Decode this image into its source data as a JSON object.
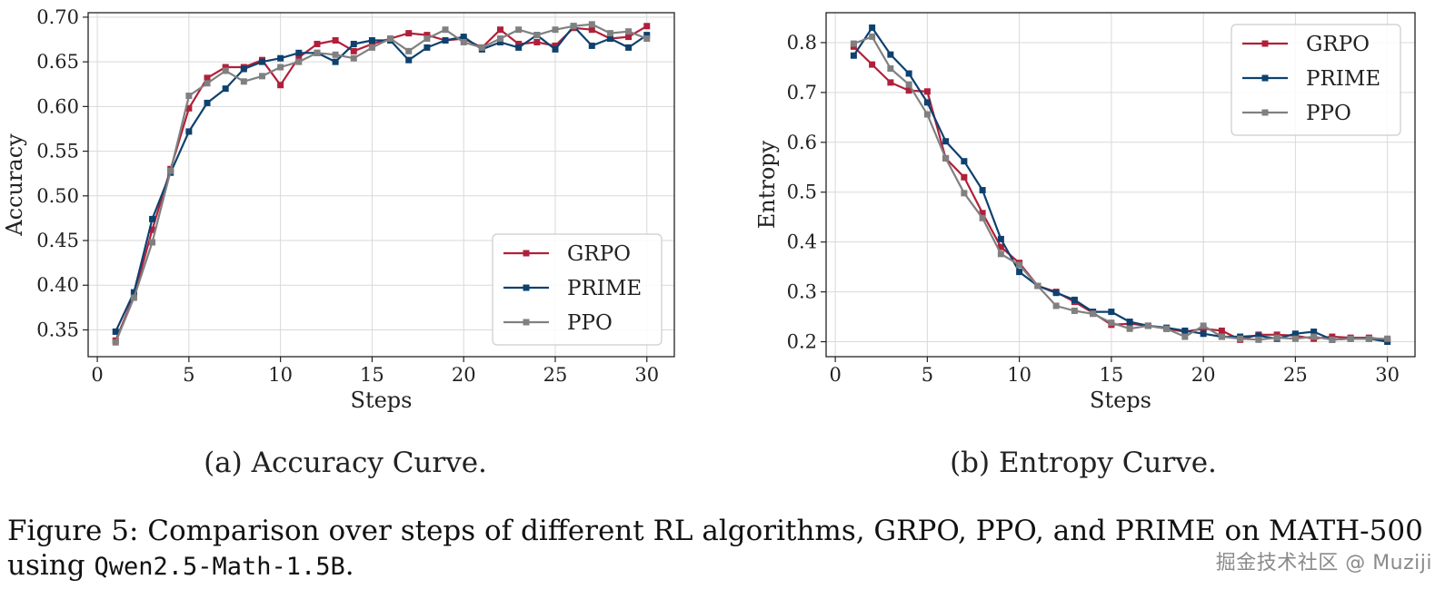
{
  "chart_data": [
    {
      "type": "line",
      "id": "accuracy",
      "subcaption": "(a) Accuracy Curve.",
      "xlabel": "Steps",
      "ylabel": "Accuracy",
      "xlim": [
        -0.5,
        31.5
      ],
      "ylim": [
        0.32,
        0.705
      ],
      "xticks": [
        0,
        5,
        10,
        15,
        20,
        25,
        30
      ],
      "yticks": [
        0.35,
        0.4,
        0.45,
        0.5,
        0.55,
        0.6,
        0.65,
        0.7
      ],
      "ytick_labels": [
        "0.35",
        "0.40",
        "0.45",
        "0.50",
        "0.55",
        "0.60",
        "0.65",
        "0.70"
      ],
      "grid": true,
      "legend_position": "lower-right",
      "x": [
        1,
        2,
        3,
        4,
        5,
        6,
        7,
        8,
        9,
        10,
        11,
        12,
        13,
        14,
        15,
        16,
        17,
        18,
        19,
        20,
        21,
        22,
        23,
        24,
        25,
        26,
        27,
        28,
        29,
        30
      ],
      "series": [
        {
          "name": "GRPO",
          "color": "#b0203a",
          "values": [
            0.338,
            0.388,
            0.462,
            0.53,
            0.598,
            0.632,
            0.644,
            0.644,
            0.652,
            0.624,
            0.655,
            0.67,
            0.674,
            0.662,
            0.67,
            0.676,
            0.682,
            0.68,
            0.674,
            0.676,
            0.666,
            0.686,
            0.67,
            0.672,
            0.668,
            0.688,
            0.686,
            0.676,
            0.678,
            0.69
          ]
        },
        {
          "name": "PRIME",
          "color": "#0e416e",
          "values": [
            0.348,
            0.392,
            0.474,
            0.526,
            0.572,
            0.604,
            0.62,
            0.642,
            0.65,
            0.654,
            0.66,
            0.66,
            0.65,
            0.67,
            0.674,
            0.674,
            0.652,
            0.666,
            0.674,
            0.678,
            0.664,
            0.672,
            0.666,
            0.68,
            0.664,
            0.69,
            0.668,
            0.676,
            0.666,
            0.68
          ]
        },
        {
          "name": "PPO",
          "color": "#808080",
          "values": [
            0.336,
            0.386,
            0.448,
            0.528,
            0.612,
            0.626,
            0.64,
            0.628,
            0.634,
            0.644,
            0.65,
            0.66,
            0.658,
            0.654,
            0.666,
            0.676,
            0.662,
            0.676,
            0.686,
            0.672,
            0.666,
            0.676,
            0.686,
            0.68,
            0.686,
            0.69,
            0.692,
            0.682,
            0.684,
            0.676
          ]
        }
      ]
    },
    {
      "type": "line",
      "id": "entropy",
      "subcaption": "(b) Entropy Curve.",
      "xlabel": "Steps",
      "ylabel": "Entropy",
      "xlim": [
        -0.5,
        31.5
      ],
      "ylim": [
        0.17,
        0.86
      ],
      "xticks": [
        0,
        5,
        10,
        15,
        20,
        25,
        30
      ],
      "yticks": [
        0.2,
        0.3,
        0.4,
        0.5,
        0.6,
        0.7,
        0.8
      ],
      "ytick_labels": [
        "0.2",
        "0.3",
        "0.4",
        "0.5",
        "0.6",
        "0.7",
        "0.8"
      ],
      "grid": true,
      "legend_position": "top-right",
      "x": [
        1,
        2,
        3,
        4,
        5,
        6,
        7,
        8,
        9,
        10,
        11,
        12,
        13,
        14,
        15,
        16,
        17,
        18,
        19,
        20,
        21,
        22,
        23,
        24,
        25,
        26,
        27,
        28,
        29,
        30
      ],
      "series": [
        {
          "name": "GRPO",
          "color": "#b0203a",
          "values": [
            0.792,
            0.756,
            0.72,
            0.704,
            0.702,
            0.568,
            0.53,
            0.458,
            0.39,
            0.358,
            0.312,
            0.3,
            0.28,
            0.258,
            0.234,
            0.236,
            0.232,
            0.226,
            0.22,
            0.226,
            0.222,
            0.204,
            0.214,
            0.214,
            0.212,
            0.206,
            0.21,
            0.208,
            0.208,
            0.204
          ]
        },
        {
          "name": "PRIME",
          "color": "#0e416e",
          "values": [
            0.774,
            0.83,
            0.776,
            0.738,
            0.68,
            0.602,
            0.562,
            0.504,
            0.406,
            0.34,
            0.312,
            0.298,
            0.284,
            0.26,
            0.26,
            0.24,
            0.232,
            0.228,
            0.222,
            0.216,
            0.21,
            0.21,
            0.212,
            0.206,
            0.216,
            0.22,
            0.204,
            0.206,
            0.206,
            0.2
          ]
        },
        {
          "name": "PPO",
          "color": "#808080",
          "values": [
            0.798,
            0.812,
            0.748,
            0.716,
            0.656,
            0.568,
            0.498,
            0.448,
            0.376,
            0.354,
            0.312,
            0.272,
            0.262,
            0.256,
            0.238,
            0.226,
            0.232,
            0.226,
            0.21,
            0.232,
            0.21,
            0.206,
            0.204,
            0.208,
            0.206,
            0.21,
            0.204,
            0.206,
            0.206,
            0.206
          ]
        }
      ]
    }
  ],
  "caption": {
    "text_prefix": "Figure 5: Comparison over steps of different RL algorithms, GRPO, PPO, and PRIME on MATH-500 using ",
    "model_name": "Qwen2.5-Math-1.5B",
    "text_suffix": "."
  },
  "watermark": "掘金技术社区 @ Muziji"
}
